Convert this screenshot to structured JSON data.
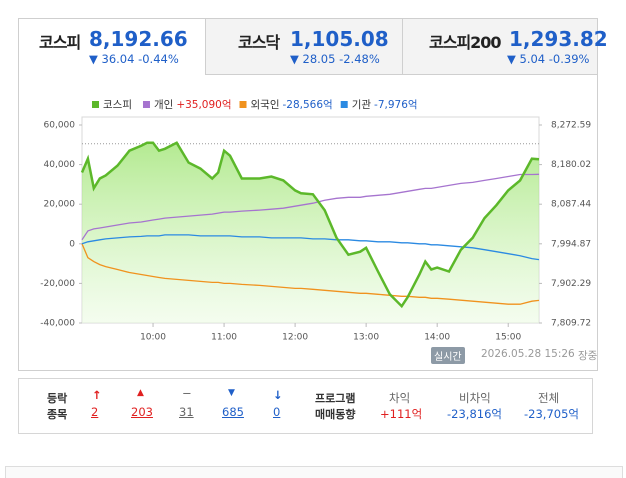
{
  "tabs": [
    {
      "name": "코스피",
      "value": "8,192.66",
      "change": "36.04",
      "rate": "-0.44%"
    },
    {
      "name": "코스닥",
      "value": "1,105.08",
      "change": "28.05",
      "rate": "-2.48%"
    },
    {
      "name": "코스피200",
      "value": "1,293.82",
      "change": "5.04",
      "rate": "-0.39%"
    }
  ],
  "chart_data": {
    "type": "line",
    "x": [
      0,
      5,
      10,
      15,
      20,
      30,
      40,
      50,
      55,
      60,
      65,
      70,
      80,
      90,
      100,
      110,
      115,
      120,
      125,
      135,
      150,
      160,
      170,
      180,
      185,
      195,
      205,
      215,
      225,
      235,
      240,
      250,
      260,
      270,
      275,
      285,
      290,
      295,
      300,
      310,
      320,
      330,
      340,
      350,
      360,
      370,
      380,
      386
    ],
    "xlim": [
      0,
      386
    ],
    "xticks": [
      {
        "value": 60,
        "label": "10:00"
      },
      {
        "value": 120,
        "label": "11:00"
      },
      {
        "value": 180,
        "label": "12:00"
      },
      {
        "value": 240,
        "label": "13:00"
      },
      {
        "value": 300,
        "label": "14:00"
      },
      {
        "value": 360,
        "label": "15:00"
      }
    ],
    "ylim": [
      -40000,
      60000
    ],
    "yticks": [
      {
        "value": 60000,
        "label": "60,000"
      },
      {
        "value": 40000,
        "label": "40,000"
      },
      {
        "value": 20000,
        "label": "20,000"
      },
      0,
      {
        "value": -20000,
        "label": "-20,000"
      },
      {
        "value": -40000,
        "label": "-40,000"
      }
    ],
    "y2lim": [
      7809.72,
      8272.59
    ],
    "y2ticks": [
      {
        "value": 8272.59,
        "label": "8,272.59"
      },
      {
        "value": 8180.02,
        "label": "8,180.02"
      },
      {
        "value": 8087.44,
        "label": "8,087.44"
      },
      {
        "value": 7994.87,
        "label": "7,994.87"
      },
      {
        "value": 7902.29,
        "label": "7,902.29"
      },
      {
        "value": 7809.72,
        "label": "7,809.72"
      }
    ],
    "ref_line": 8228.7,
    "series": [
      {
        "name": "코스피",
        "color": "#5cb82a",
        "axis": "y2",
        "area": true,
        "values": [
          8161.5,
          8193.9,
          8124.5,
          8147.6,
          8154.5,
          8177.7,
          8212.4,
          8224.0,
          8230.9,
          8230.9,
          8212.4,
          8217.0,
          8230.9,
          8184.6,
          8170.7,
          8147.6,
          8161.5,
          8212.4,
          8200.8,
          8147.6,
          8147.6,
          8152.2,
          8143.0,
          8119.8,
          8112.9,
          8110.6,
          8073.5,
          8008.8,
          7969.4,
          7976.4,
          7985.6,
          7930.1,
          7876.9,
          7849.1,
          7869.9,
          7923.1,
          7953.2,
          7934.7,
          7939.3,
          7930.1,
          7981.0,
          8008.8,
          8055.0,
          8085.1,
          8119.8,
          8143.0,
          8193.9,
          8192.66
        ]
      },
      {
        "name": "개인",
        "legend_value": "+35,090억",
        "legend_value_color": "#e02020",
        "color": "#a674cf",
        "values": [
          2000,
          6500,
          7500,
          8000,
          8500,
          9500,
          10500,
          11000,
          11500,
          12000,
          12500,
          13000,
          13500,
          14000,
          14500,
          15000,
          15500,
          16000,
          16000,
          16500,
          17000,
          17500,
          18000,
          19000,
          19500,
          20500,
          22000,
          23000,
          23500,
          23500,
          24000,
          24500,
          25000,
          26000,
          26500,
          27500,
          28000,
          28000,
          28500,
          29500,
          30500,
          31000,
          32000,
          33000,
          34000,
          35000,
          35000,
          35090
        ]
      },
      {
        "name": "외국인",
        "legend_value": "-28,566억",
        "legend_value_color": "#1f5fc8",
        "color": "#f0921e",
        "values": [
          0,
          -7000,
          -9000,
          -10500,
          -11500,
          -13000,
          -14500,
          -15500,
          -16000,
          -16500,
          -17000,
          -17500,
          -18000,
          -18500,
          -19000,
          -19500,
          -19500,
          -20000,
          -20000,
          -20500,
          -21000,
          -21500,
          -22000,
          -22500,
          -22500,
          -23000,
          -23500,
          -24000,
          -24500,
          -25000,
          -25000,
          -25500,
          -26000,
          -26500,
          -26500,
          -27000,
          -27000,
          -27500,
          -27500,
          -28000,
          -28500,
          -29000,
          -29500,
          -30000,
          -30500,
          -30500,
          -29000,
          -28566
        ]
      },
      {
        "name": "기관",
        "legend_value": "-7,976억",
        "legend_value_color": "#1f5fc8",
        "color": "#2b8ae2",
        "values": [
          0,
          1000,
          1500,
          2000,
          2500,
          3000,
          3500,
          3750,
          4000,
          4000,
          4000,
          4500,
          4500,
          4500,
          4000,
          4000,
          4000,
          4000,
          4000,
          3500,
          3500,
          3000,
          3000,
          3000,
          3000,
          2500,
          2500,
          2000,
          2000,
          1500,
          1500,
          1000,
          1000,
          500,
          500,
          0,
          0,
          -500,
          -500,
          -1000,
          -1500,
          -2000,
          -3000,
          -4000,
          -5000,
          -6000,
          -7500,
          -7976
        ]
      }
    ]
  },
  "badge": "실시간",
  "timestamp": "2026.05.28 15:26",
  "status": "장중",
  "breadth": {
    "title": [
      "등락",
      "종목"
    ],
    "counts": [
      "2",
      "203",
      "31",
      "685",
      "0"
    ]
  },
  "program": {
    "title": [
      "프로그램",
      "매매동향"
    ],
    "columns": [
      {
        "name": "차익",
        "value": "+111억"
      },
      {
        "name": "비차익",
        "value": "-23,816억"
      },
      {
        "name": "전체",
        "value": "-23,705억"
      }
    ]
  }
}
